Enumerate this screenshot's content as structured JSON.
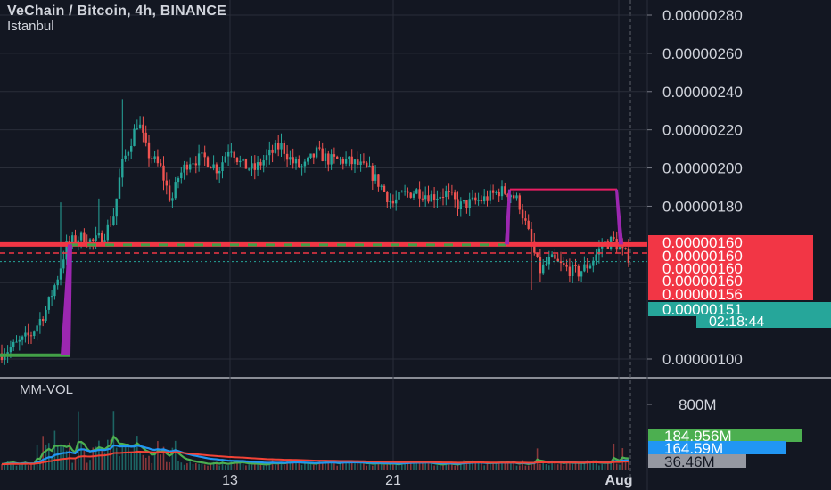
{
  "header": {
    "title": "VeChain / Bitcoin, 4h, BINANCE",
    "subtitle": "Istanbul"
  },
  "volume_pane": {
    "title": "MM-VOL"
  },
  "colors": {
    "background": "#131722",
    "up": "#26a69a",
    "down": "#ef5350",
    "resistance": "#f23645",
    "support_dash": "#43a047",
    "drawing_purple": "#9c27b0",
    "drawing_pink": "#e91e63",
    "ma_green": "#4caf50",
    "ma_blue": "#2196f3",
    "ma_red": "#f44336",
    "axis_text": "#d1d4dc",
    "grid": "#2a2e39"
  },
  "chart_data": [
    {
      "type": "candlestick",
      "title": "VeChain / Bitcoin, 4h, BINANCE",
      "subtitle": "Istanbul",
      "y_ticks": [
        "0.00000280",
        "0.00000260",
        "0.00000240",
        "0.00000220",
        "0.00000200",
        "0.00000180",
        "0.00000100"
      ],
      "x_ticks": [
        "13",
        "21",
        "Aug"
      ],
      "price_labels": [
        {
          "text": "0.00000160",
          "color": "#f23645",
          "y": 1.6e-06
        },
        {
          "text": "0.00000160",
          "color": "#f23645",
          "y": 1.595e-06
        },
        {
          "text": "0.00000160",
          "color": "#f23645",
          "y": 1.59e-06
        },
        {
          "text": "0.00000160",
          "color": "#f23645",
          "y": 1.585e-06
        },
        {
          "text": "0.00000156",
          "color": "#f23645",
          "y": 1.57e-06
        },
        {
          "text": "0.00000151",
          "color": "#26a69a",
          "y": 1.51e-06
        }
      ],
      "price_labels_layout": [
        "0.00000160",
        "0.00000160",
        "0.00000160",
        "0.00000160",
        "0.00000156"
      ],
      "covered_tick_fragment": "0.0",
      "countdown": "02:18:44",
      "ylim": [
        9.5e-07,
        2.87e-06
      ],
      "levels": {
        "resistance": 1.6e-06,
        "support": 1.6e-06,
        "dashed_red": 1.555e-06,
        "dotted_teal": 1.51e-06
      },
      "drawings": {
        "green_base": {
          "y": 1.02e-06
        },
        "purple_lift_from": 1.02e-06,
        "purple_lift_to": 1.6e-06,
        "box_top": 1.888e-06,
        "box_bottom": 1.6e-06
      }
    },
    {
      "type": "volume",
      "title": "MM-VOL",
      "y_ticks": [
        "800M"
      ],
      "value_labels": [
        {
          "text": "184.956M",
          "color": "#4caf50"
        },
        {
          "text": "164.59M",
          "color": "#2196f3"
        },
        {
          "text": "36.46M",
          "color": "#9598a1"
        }
      ],
      "ylim": [
        0,
        1000000000
      ],
      "series": [
        {
          "name": "",
          "color": "#4caf50"
        },
        {
          "name": "",
          "color": "#2196f3"
        },
        {
          "name": "",
          "color": "#f44336"
        }
      ]
    }
  ]
}
